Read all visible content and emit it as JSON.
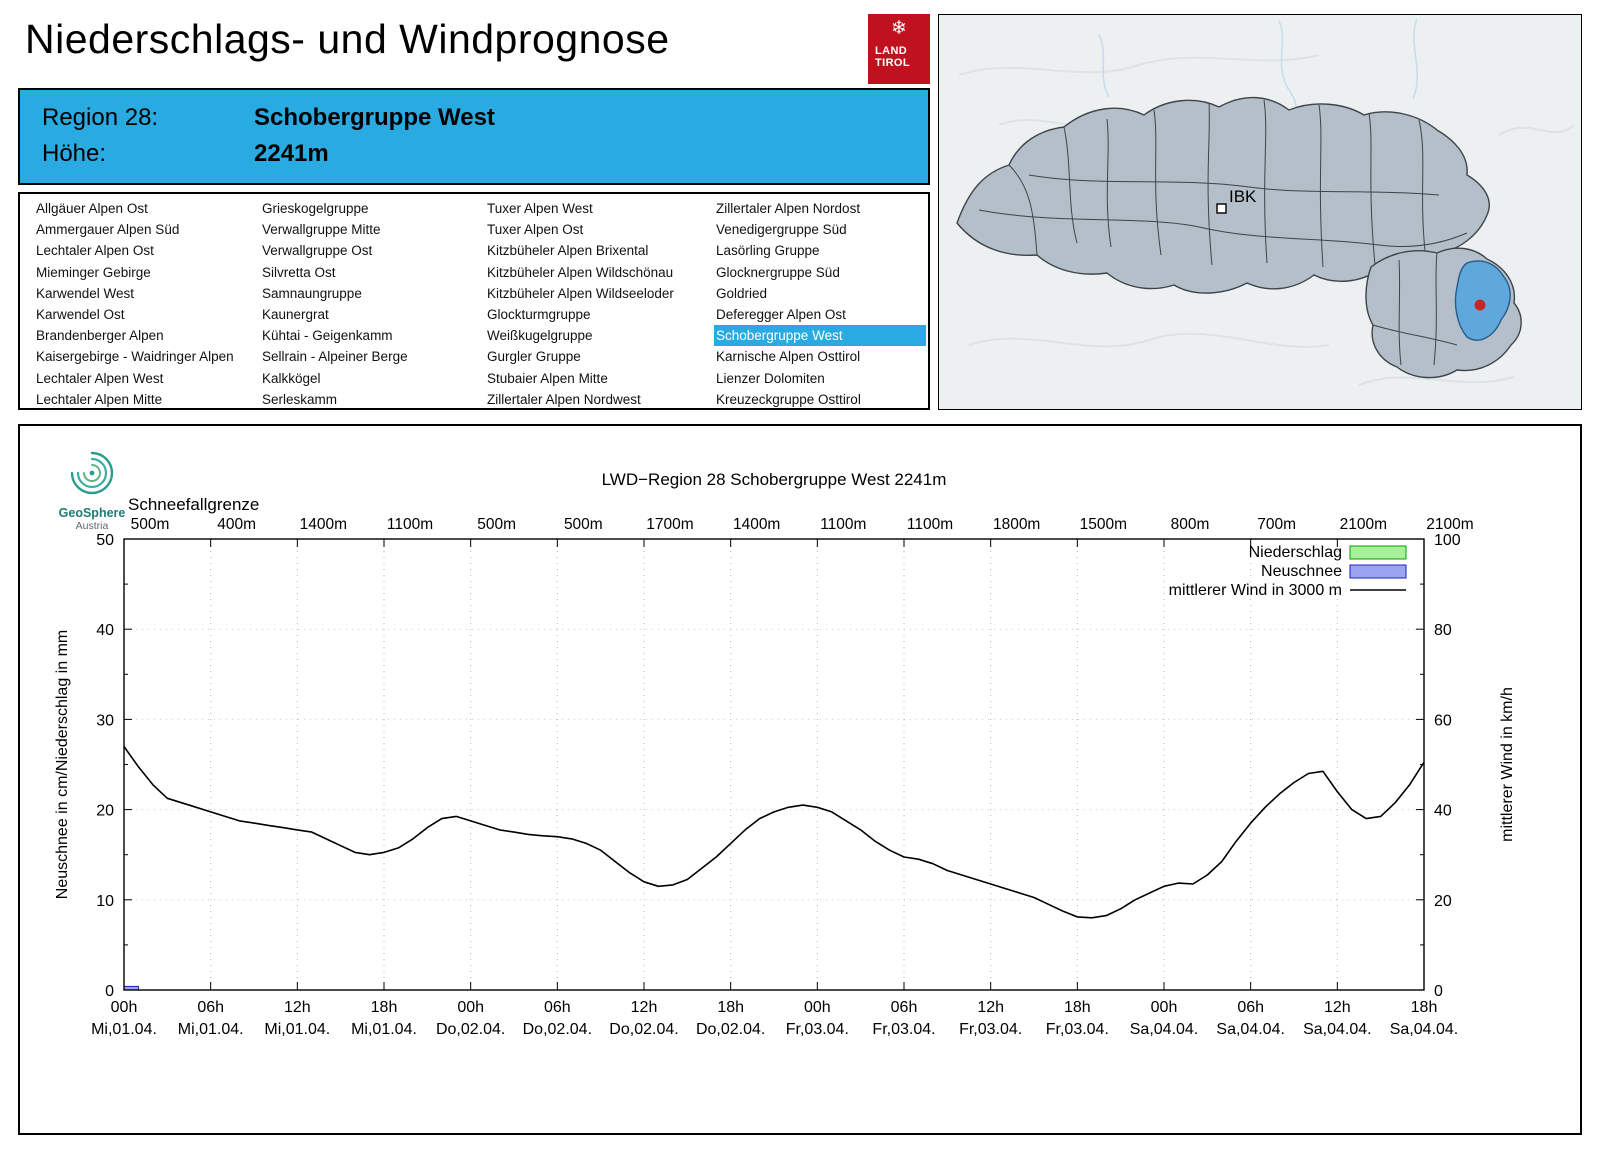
{
  "header": {
    "title": "Niederschlags- und Windprognose",
    "logo_line1": "LAND",
    "logo_line2": "TIROL"
  },
  "colors": {
    "accent_blue": "#29abe2",
    "land_tirol_red": "#c0111f",
    "map_region_fill": "#b4bfc9",
    "map_highlight": "#5fa8dc",
    "marker_red": "#c62828",
    "wind_line": "#000000"
  },
  "region_box": {
    "region_label": "Region 28:",
    "region_name": "Schobergruppe West",
    "altitude_label": "Höhe:",
    "altitude_value": "2241m"
  },
  "region_list": {
    "selected": "Schobergruppe West",
    "columns": [
      [
        "Allgäuer Alpen Ost",
        "Ammergauer Alpen Süd",
        "Lechtaler Alpen Ost",
        "Mieminger Gebirge",
        "Karwendel West",
        "Karwendel Ost",
        "Brandenberger Alpen",
        "Kaisergebirge - Waidringer Alpen",
        "Lechtaler Alpen West",
        "Lechtaler Alpen Mitte"
      ],
      [
        "Grieskogelgruppe",
        "Verwallgruppe Mitte",
        "Verwallgruppe Ost",
        "Silvretta Ost",
        "Samnaungruppe",
        "Kaunergrat",
        "Kühtai - Geigenkamm",
        "Sellrain - Alpeiner Berge",
        "Kalkkögel",
        "Serleskamm"
      ],
      [
        "Tuxer Alpen West",
        "Tuxer Alpen Ost",
        "Kitzbüheler Alpen Brixental",
        "Kitzbüheler Alpen Wildschönau",
        "Kitzbüheler Alpen Wildseeloder",
        "Glockturmgruppe",
        "Weißkugelgruppe",
        "Gurgler Gruppe",
        "Stubaier Alpen Mitte",
        "Zillertaler Alpen Nordwest"
      ],
      [
        "Zillertaler Alpen Nordost",
        "Venedigergruppe Süd",
        "Lasörling Gruppe",
        "Glocknergruppe Süd",
        "Goldried",
        "Deferegger Alpen Ost",
        "Schobergruppe West",
        "Karnische Alpen Osttirol",
        "Lienzer Dolomiten",
        "Kreuzeckgruppe Osttirol"
      ]
    ]
  },
  "map": {
    "marker_label": "IBK"
  },
  "branding": {
    "name": "GeoSphere",
    "sub": "Austria"
  },
  "chart_data": {
    "type": "line",
    "title": "LWD−Region 28 Schobergruppe West 2241m",
    "snowline_label": "Schneefallgrenze",
    "snowline_values": [
      "500m",
      "400m",
      "1400m",
      "1100m",
      "500m",
      "500m",
      "1700m",
      "1400m",
      "1100m",
      "1100m",
      "1800m",
      "1500m",
      "800m",
      "700m",
      "2100m",
      "2100m"
    ],
    "ylabel_left": "Neuschnee in cm/Niederschlag in mm",
    "ylabel_right": "mittlerer Wind in km/h",
    "ylim_left": [
      0,
      50
    ],
    "ylim_right": [
      0,
      100
    ],
    "yticks_left": [
      0,
      10,
      20,
      30,
      40,
      50
    ],
    "yticks_right": [
      0,
      20,
      40,
      60,
      80,
      100
    ],
    "grid": true,
    "legend_position": "top-right",
    "x_hours_range": [
      0,
      90
    ],
    "x_ticks": [
      {
        "hour": "00h",
        "date": "Mi,01.04."
      },
      {
        "hour": "06h",
        "date": "Mi,01.04."
      },
      {
        "hour": "12h",
        "date": "Mi,01.04."
      },
      {
        "hour": "18h",
        "date": "Mi,01.04."
      },
      {
        "hour": "00h",
        "date": "Do,02.04."
      },
      {
        "hour": "06h",
        "date": "Do,02.04."
      },
      {
        "hour": "12h",
        "date": "Do,02.04."
      },
      {
        "hour": "18h",
        "date": "Do,02.04."
      },
      {
        "hour": "00h",
        "date": "Fr,03.04."
      },
      {
        "hour": "06h",
        "date": "Fr,03.04."
      },
      {
        "hour": "12h",
        "date": "Fr,03.04."
      },
      {
        "hour": "18h",
        "date": "Fr,03.04."
      },
      {
        "hour": "00h",
        "date": "Sa,04.04."
      },
      {
        "hour": "06h",
        "date": "Sa,04.04."
      },
      {
        "hour": "12h",
        "date": "Sa,04.04."
      },
      {
        "hour": "18h",
        "date": "Sa,04.04."
      }
    ],
    "legend": [
      {
        "label": "Niederschlag",
        "type": "box",
        "fill": "#a8f09a",
        "border": "#00a000"
      },
      {
        "label": "Neuschnee",
        "type": "box",
        "fill": "#9aa4f0",
        "border": "#2020c0"
      },
      {
        "label": "mittlerer Wind in 3000 m",
        "type": "line",
        "color": "#000000"
      }
    ],
    "niederschlag_bars": [],
    "neuschnee_bars": [
      {
        "start_hour": 0,
        "end_hour": 1,
        "value_cm": 0.4
      }
    ],
    "wind_series": {
      "name": "mittlerer Wind in 3000 m",
      "unit": "km/h",
      "points": [
        [
          0,
          54
        ],
        [
          1,
          49.5
        ],
        [
          2,
          45.5
        ],
        [
          3,
          42.5
        ],
        [
          4,
          41.5
        ],
        [
          5,
          40.5
        ],
        [
          6,
          39.5
        ],
        [
          7,
          38.5
        ],
        [
          8,
          37.5
        ],
        [
          9,
          37
        ],
        [
          10,
          36.5
        ],
        [
          11,
          36
        ],
        [
          12,
          35.5
        ],
        [
          13,
          35
        ],
        [
          14,
          33.5
        ],
        [
          15,
          32
        ],
        [
          16,
          30.5
        ],
        [
          17,
          30
        ],
        [
          18,
          30.5
        ],
        [
          19,
          31.5
        ],
        [
          20,
          33.5
        ],
        [
          21,
          36
        ],
        [
          22,
          38
        ],
        [
          23,
          38.5
        ],
        [
          24,
          37.5
        ],
        [
          25,
          36.5
        ],
        [
          26,
          35.5
        ],
        [
          27,
          35
        ],
        [
          28,
          34.5
        ],
        [
          29,
          34.2
        ],
        [
          30,
          34
        ],
        [
          31,
          33.5
        ],
        [
          32,
          32.5
        ],
        [
          33,
          31
        ],
        [
          34,
          28.5
        ],
        [
          35,
          26
        ],
        [
          36,
          24
        ],
        [
          37,
          23
        ],
        [
          38,
          23.3
        ],
        [
          39,
          24.5
        ],
        [
          40,
          27
        ],
        [
          41,
          29.5
        ],
        [
          42,
          32.5
        ],
        [
          43,
          35.5
        ],
        [
          44,
          38
        ],
        [
          45,
          39.5
        ],
        [
          46,
          40.5
        ],
        [
          47,
          41
        ],
        [
          48,
          40.5
        ],
        [
          49,
          39.5
        ],
        [
          50,
          37.5
        ],
        [
          51,
          35.5
        ],
        [
          52,
          33
        ],
        [
          53,
          31
        ],
        [
          54,
          29.5
        ],
        [
          55,
          29
        ],
        [
          56,
          28
        ],
        [
          57,
          26.5
        ],
        [
          58,
          25.5
        ],
        [
          59,
          24.5
        ],
        [
          60,
          23.5
        ],
        [
          61,
          22.5
        ],
        [
          62,
          21.5
        ],
        [
          63,
          20.5
        ],
        [
          64,
          19
        ],
        [
          65,
          17.5
        ],
        [
          66,
          16.2
        ],
        [
          67,
          16
        ],
        [
          68,
          16.5
        ],
        [
          69,
          18
        ],
        [
          70,
          20
        ],
        [
          71,
          21.5
        ],
        [
          72,
          23
        ],
        [
          73,
          23.7
        ],
        [
          74,
          23.5
        ],
        [
          75,
          25.5
        ],
        [
          76,
          28.5
        ],
        [
          77,
          33
        ],
        [
          78,
          37
        ],
        [
          79,
          40.5
        ],
        [
          80,
          43.5
        ],
        [
          81,
          46
        ],
        [
          82,
          48
        ],
        [
          83,
          48.5
        ],
        [
          84,
          44
        ],
        [
          85,
          40
        ],
        [
          86,
          38
        ],
        [
          87,
          38.5
        ],
        [
          88,
          41.5
        ],
        [
          89,
          45.5
        ],
        [
          90,
          50.5
        ]
      ]
    }
  }
}
